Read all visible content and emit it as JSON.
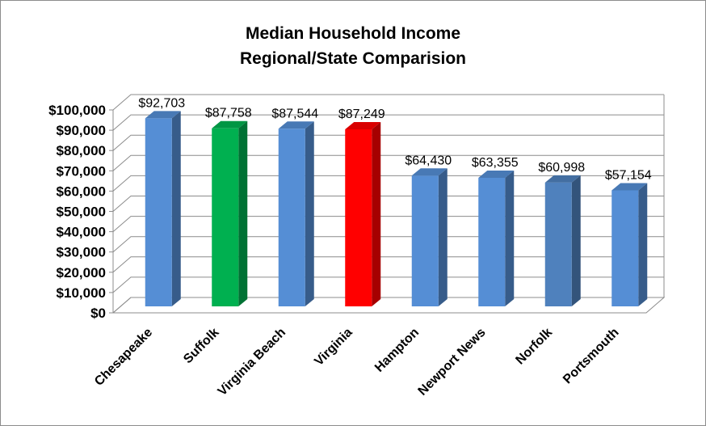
{
  "chart_data": {
    "type": "bar",
    "title": "Median Household  Income",
    "subtitle": "Regional/State Comparision",
    "xlabel": "",
    "ylabel": "",
    "categories": [
      "Chesapeake",
      "Suffolk",
      "Virginia Beach",
      "Virginia",
      "Hampton",
      "Newport News",
      "Norfolk",
      "Portsmouth"
    ],
    "values": [
      92703,
      87758,
      87544,
      87249,
      64430,
      63355,
      60998,
      57154
    ],
    "data_labels": [
      "$92,703",
      "$87,758",
      "$87,544",
      "$87,249",
      "$64,430",
      "$63,355",
      "$60,998",
      "$57,154"
    ],
    "ylim": [
      0,
      100000
    ],
    "yticks": [
      0,
      10000,
      20000,
      30000,
      40000,
      50000,
      60000,
      70000,
      80000,
      90000,
      100000
    ],
    "ytick_labels": [
      "$0",
      "$10,000",
      "$20,000",
      "$30,000",
      "$40,000",
      "$50,000",
      "$60,000",
      "$70,000",
      "$80,000",
      "$90,000",
      "$100,000"
    ],
    "bar_colors": [
      "#558ed5",
      "#00b050",
      "#558ed5",
      "#ff0000",
      "#558ed5",
      "#558ed5",
      "#4f81bd",
      "#558ed5"
    ],
    "grid": true,
    "legend": "none",
    "style": "3d-column"
  }
}
